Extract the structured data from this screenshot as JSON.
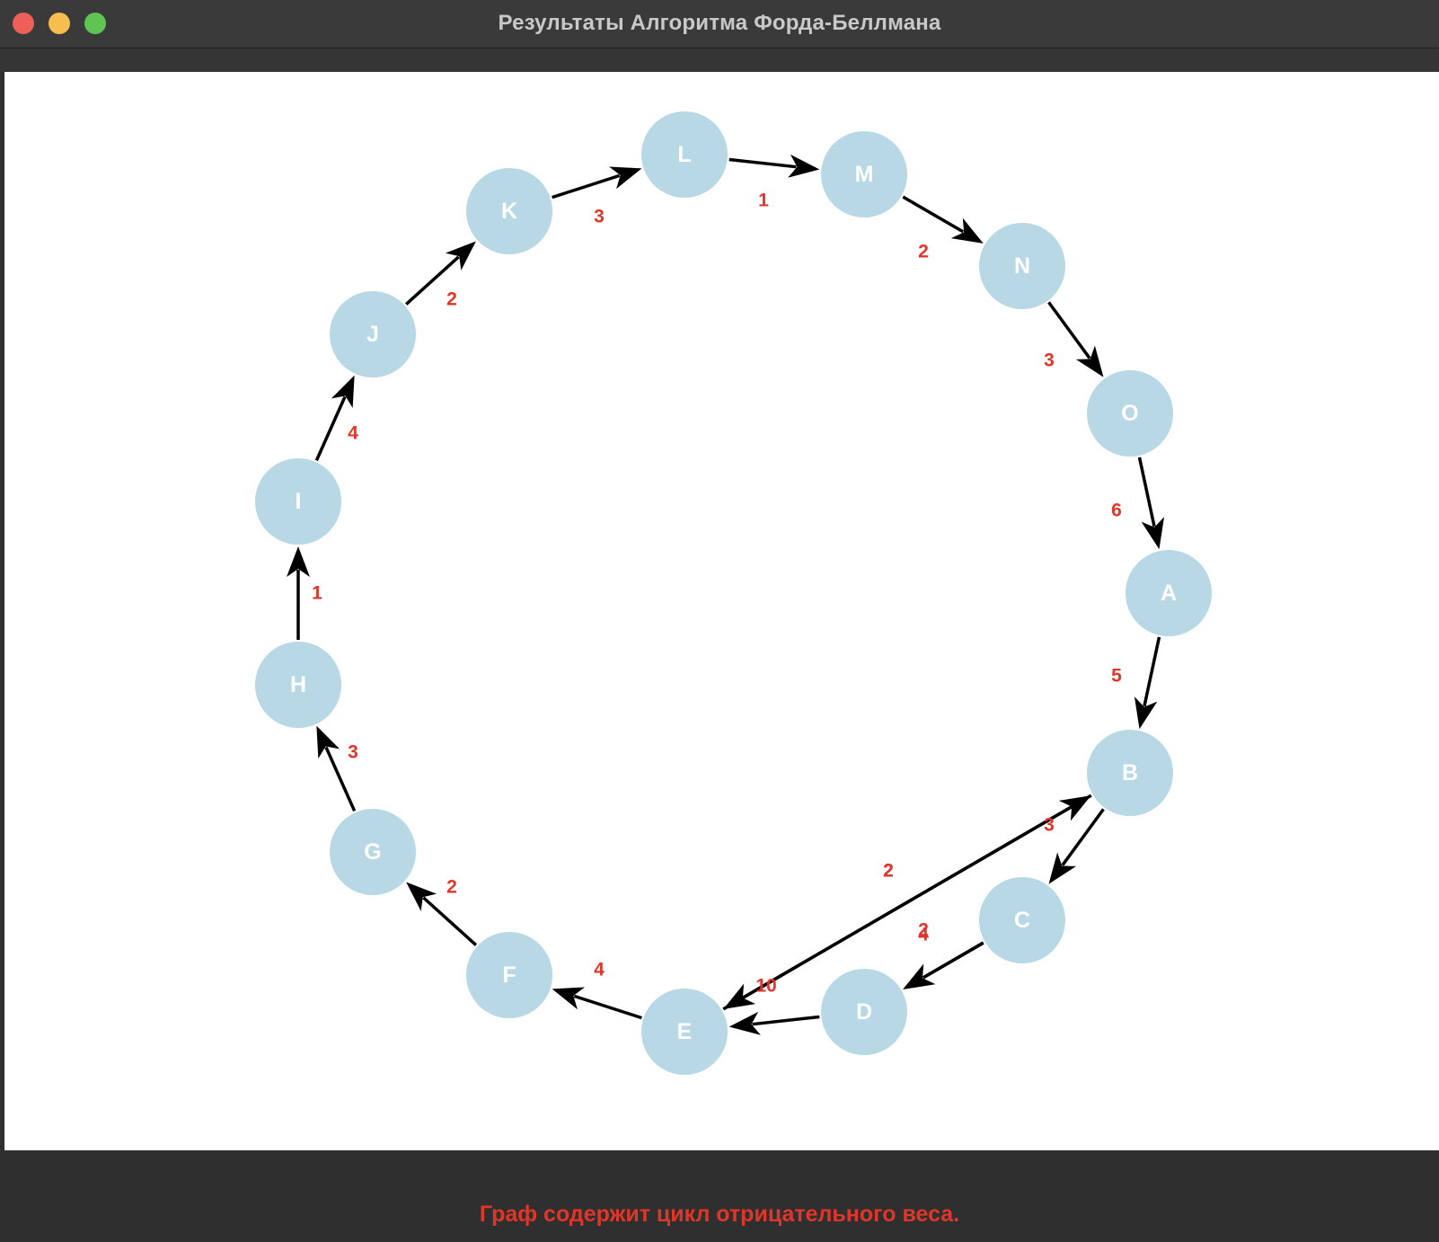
{
  "window": {
    "title": "Результаты Алгоритма Форда-Беллмана"
  },
  "status": {
    "message": "Граф содержит цикл отрицательного веса."
  },
  "colors": {
    "node_fill": "#b7d8e4",
    "node_text": "#ffffff",
    "edge": "#000000",
    "weight_text": "#e0362a",
    "status_text": "#e0362a"
  },
  "graph": {
    "nodes": [
      "A",
      "B",
      "C",
      "D",
      "E",
      "F",
      "G",
      "H",
      "I",
      "J",
      "K",
      "L",
      "M",
      "N",
      "O"
    ],
    "edges": [
      {
        "from": "A",
        "to": "B",
        "weight": "5"
      },
      {
        "from": "B",
        "to": "C",
        "weight": "3"
      },
      {
        "from": "C",
        "to": "D",
        "weight": "2"
      },
      {
        "from": "C",
        "to": "D",
        "weight": "4"
      },
      {
        "from": "D",
        "to": "E",
        "weight": "10"
      },
      {
        "from": "E",
        "to": "B",
        "weight": "2"
      },
      {
        "from": "B",
        "to": "E",
        "weight": "2"
      },
      {
        "from": "E",
        "to": "F",
        "weight": "4"
      },
      {
        "from": "F",
        "to": "G",
        "weight": "2"
      },
      {
        "from": "G",
        "to": "H",
        "weight": "3"
      },
      {
        "from": "H",
        "to": "I",
        "weight": "1"
      },
      {
        "from": "I",
        "to": "J",
        "weight": "4"
      },
      {
        "from": "J",
        "to": "K",
        "weight": "2"
      },
      {
        "from": "K",
        "to": "L",
        "weight": "3"
      },
      {
        "from": "L",
        "to": "M",
        "weight": "1"
      },
      {
        "from": "M",
        "to": "N",
        "weight": "2"
      },
      {
        "from": "N",
        "to": "O",
        "weight": "3"
      },
      {
        "from": "O",
        "to": "A",
        "weight": "6"
      }
    ]
  }
}
